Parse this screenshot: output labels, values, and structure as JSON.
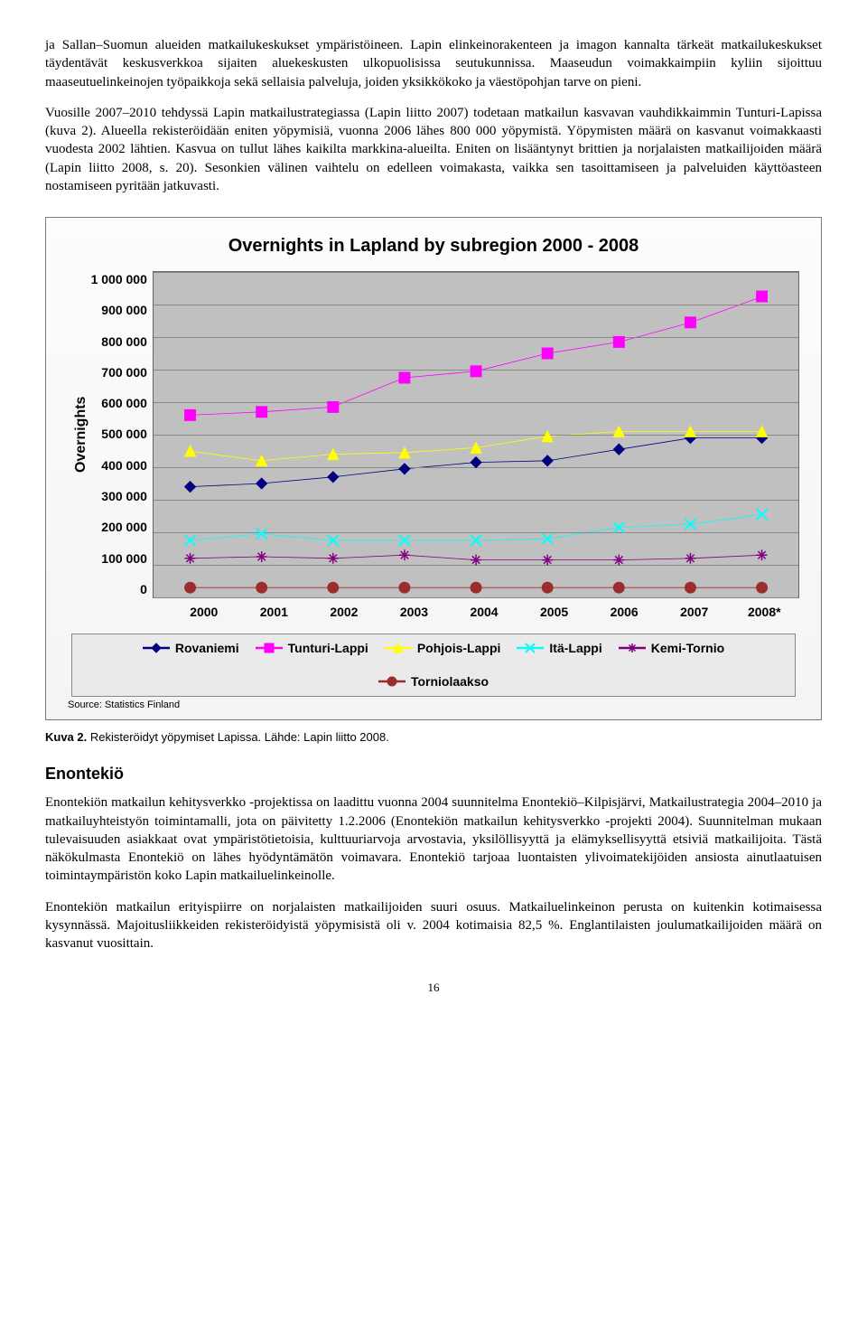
{
  "para1": "ja Sallan–Suomun alueiden matkailukeskukset ympäristöineen. Lapin elinkeinorakenteen ja imagon kannalta tärkeät matkailukeskukset täydentävät keskusverkkoa sijaiten aluekeskusten ulkopuolisissa seutukunnissa. Maaseudun voimakkaimpiin kyliin sijoittuu maaseutuelinkeinojen työpaikkoja sekä sellaisia palveluja, joiden yksikkökoko ja väestöpohjan tarve on pieni.",
  "para2": "Vuosille 2007–2010 tehdyssä Lapin matkailustrategiassa (Lapin liitto 2007) todetaan matkailun kasvavan vauhdikkaimmin Tunturi-Lapissa (kuva 2). Alueella rekisteröidään eniten yöpymisiä, vuonna 2006 lähes 800 000 yöpymistä. Yöpymisten määrä on kasvanut voimakkaasti vuodesta 2002 lähtien. Kasvua on tullut lähes kaikilta markkina-alueilta. Eniten on lisääntynyt brittien ja norjalaisten matkailijoiden määrä (Lapin liitto 2008, s. 20). Sesonkien välinen vaihtelu on edelleen voimakasta, vaikka sen tasoittamiseen ja palveluiden käyttöasteen nostamiseen pyritään jatkuvasti.",
  "chart": {
    "title": "Overnights in Lapland by subregion 2000 - 2008",
    "ylabel": "Overnights",
    "ymin": 0,
    "ymax": 1000000,
    "ystep": 100000,
    "yticks": [
      "1 000 000",
      "900 000",
      "800 000",
      "700 000",
      "600 000",
      "500 000",
      "400 000",
      "300 000",
      "200 000",
      "100 000",
      "0"
    ],
    "categories": [
      "2000",
      "2001",
      "2002",
      "2003",
      "2004",
      "2005",
      "2006",
      "2007",
      "2008*"
    ],
    "series": [
      {
        "name": "Rovaniemi",
        "color": "#000080",
        "marker": "diamond",
        "values": [
          340000,
          350000,
          370000,
          395000,
          415000,
          420000,
          455000,
          490000,
          490000
        ]
      },
      {
        "name": "Tunturi-Lappi",
        "color": "#ff00ff",
        "marker": "square",
        "values": [
          560000,
          570000,
          585000,
          675000,
          695000,
          750000,
          785000,
          845000,
          925000
        ]
      },
      {
        "name": "Pohjois-Lappi",
        "color": "#ffff00",
        "marker": "triangle",
        "values": [
          450000,
          420000,
          440000,
          445000,
          460000,
          495000,
          510000,
          510000,
          510000
        ]
      },
      {
        "name": "Itä-Lappi",
        "color": "#00ffff",
        "marker": "x",
        "values": [
          175000,
          195000,
          175000,
          175000,
          175000,
          180000,
          215000,
          225000,
          255000
        ]
      },
      {
        "name": "Kemi-Tornio",
        "color": "#800080",
        "marker": "star",
        "values": [
          120000,
          125000,
          120000,
          130000,
          115000,
          115000,
          115000,
          120000,
          130000
        ]
      },
      {
        "name": "Torniolaakso",
        "color": "#9b2d2d",
        "marker": "circle",
        "values": [
          30000,
          30000,
          30000,
          30000,
          30000,
          30000,
          30000,
          30000,
          30000
        ]
      }
    ],
    "source": "Source: Statistics Finland",
    "line_width": 2.5,
    "marker_size": 6,
    "grid_color": "#888888",
    "plot_bg": "#c0c0c0"
  },
  "caption_bold": "Kuva 2.",
  "caption_rest": " Rekisteröidyt yöpymiset Lapissa. Lähde: Lapin liitto 2008.",
  "section_heading": "Enontekiö",
  "para3": "Enontekiön matkailun kehitysverkko -projektissa on laadittu vuonna 2004 suunnitelma Enontekiö–Kilpisjärvi, Matkailustrategia 2004–2010 ja matkailuyhteistyön toimintamalli, jota on päivitetty 1.2.2006 (Enontekiön matkailun kehitysverkko -projekti 2004). Suunnitelman mukaan tulevaisuuden asiakkaat ovat ympäristötietoisia, kulttuuriarvoja arvostavia, yksilöllisyyttä ja elämyksellisyyttä etsiviä matkailijoita. Tästä näkökulmasta Enontekiö on lähes hyödyntämätön voimavara. Enontekiö tarjoaa luontaisten ylivoimatekijöiden ansiosta ainutlaatuisen toimintaympäristön koko Lapin matkailuelinkeinolle.",
  "para4": "Enontekiön matkailun erityispiirre on norjalaisten matkailijoiden suuri osuus. Matkailuelinkeinon perusta on kuitenkin kotimaisessa kysynnässä. Majoitusliikkeiden rekisteröidyistä yöpymisistä oli v. 2004 kotimaisia 82,5 %. Englantilaisten joulumatkailijoiden määrä on kasvanut vuosittain.",
  "page_number": "16"
}
